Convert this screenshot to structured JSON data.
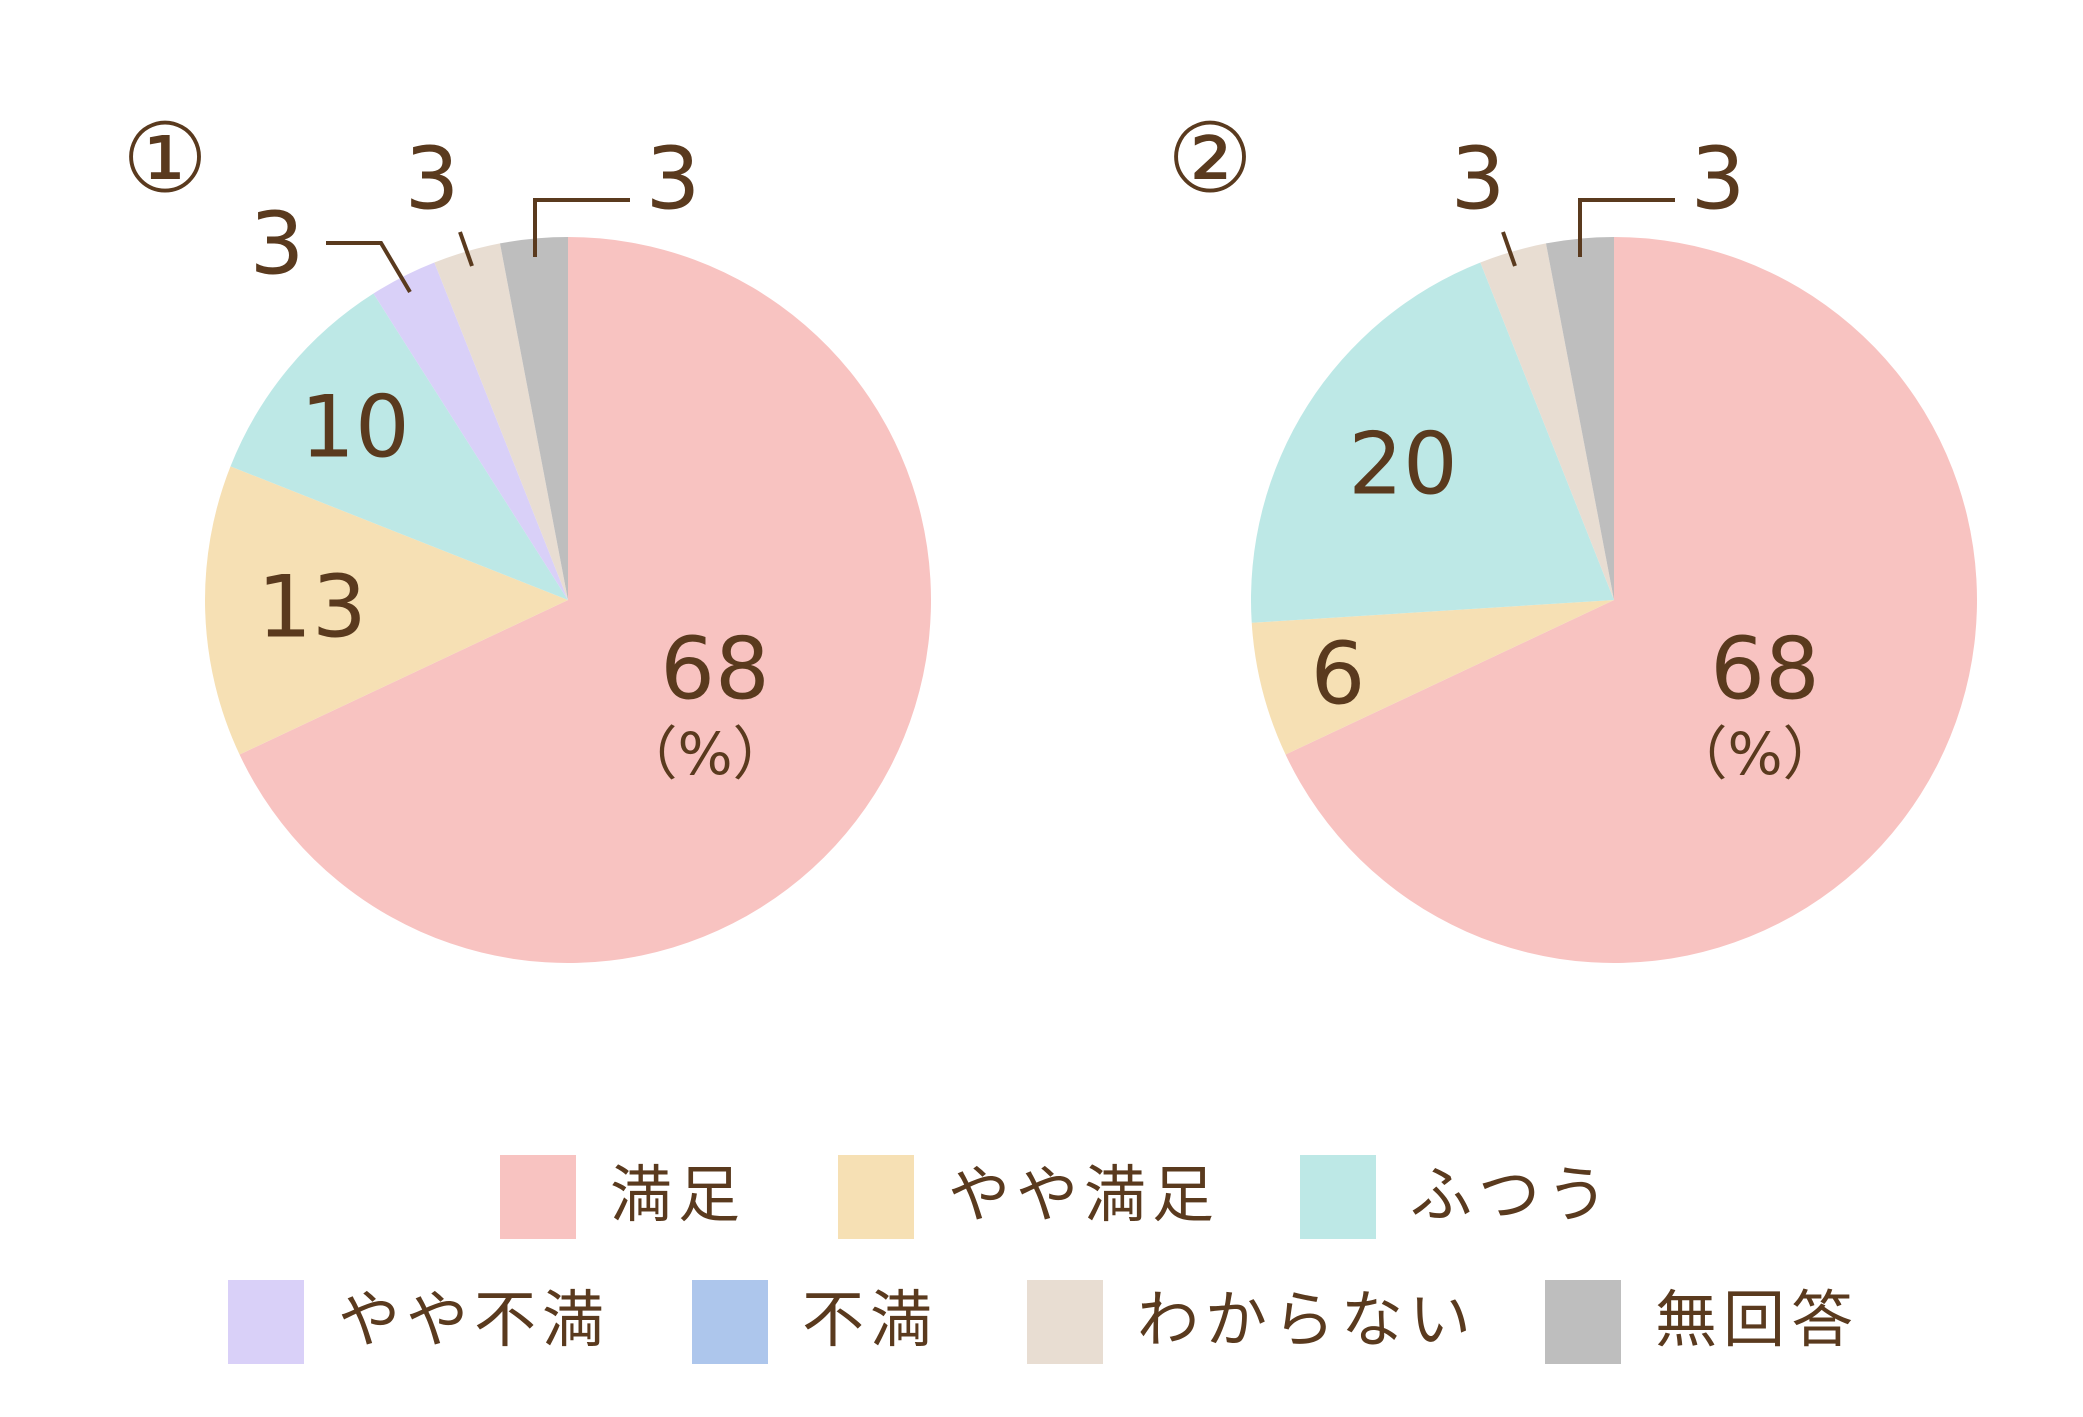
{
  "unit_label": "（%）",
  "chart_data": [
    {
      "type": "pie",
      "title": "①",
      "categories": [
        "満足",
        "やや満足",
        "ふつう",
        "やや不満",
        "不満",
        "わからない",
        "無回答"
      ],
      "values": [
        68,
        13,
        10,
        3,
        0,
        3,
        3
      ],
      "labels": [
        "68",
        "13",
        "10",
        "3",
        "",
        "3",
        "3"
      ]
    },
    {
      "type": "pie",
      "title": "②",
      "categories": [
        "満足",
        "やや満足",
        "ふつう",
        "やや不満",
        "不満",
        "わからない",
        "無回答"
      ],
      "values": [
        68,
        6,
        20,
        0,
        0,
        3,
        3
      ],
      "labels": [
        "68",
        "6",
        "20",
        "",
        "",
        "3",
        "3"
      ]
    }
  ],
  "legend": {
    "placement": "bottom",
    "items": [
      {
        "label": "満足",
        "color": "#f8c3c1"
      },
      {
        "label": "やや満足",
        "color": "#f6e0b4"
      },
      {
        "label": "ふつう",
        "color": "#bde8e6"
      },
      {
        "label": "やや不満",
        "color": "#d9d0f8"
      },
      {
        "label": "不満",
        "color": "#adc6ec"
      },
      {
        "label": "わからない",
        "color": "#e8ddd2"
      },
      {
        "label": "無回答",
        "color": "#bebebe"
      }
    ]
  }
}
